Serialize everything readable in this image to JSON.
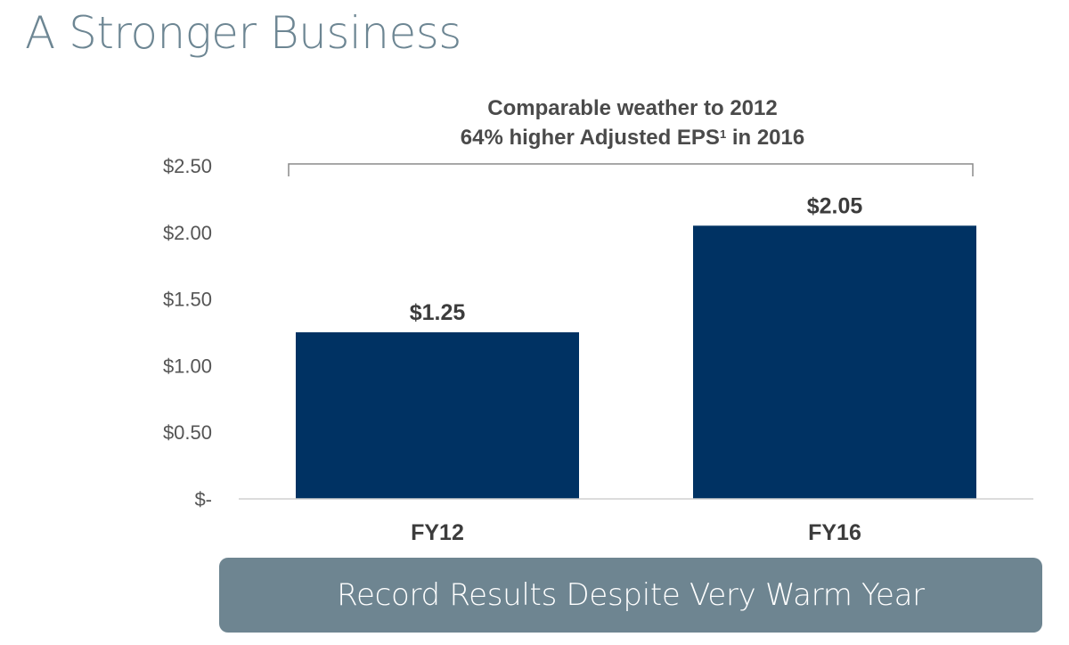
{
  "title": "A Stronger Business",
  "callout": {
    "line1": "Comparable weather to 2012",
    "line2_main": "64% higher Adjusted EPS",
    "line2_sup": "1",
    "line2_tail": " in 2016"
  },
  "banner": "Record Results Despite Very Warm Year",
  "colors": {
    "bar": "#003263",
    "title": "#6d8693",
    "banner": "#6e8591"
  },
  "chart_data": {
    "type": "bar",
    "categories": [
      "FY12",
      "FY16"
    ],
    "values": [
      1.25,
      2.05
    ],
    "data_labels": [
      "$1.25",
      "$2.05"
    ],
    "ylim": [
      0,
      2.5
    ],
    "yticks": [
      0,
      0.5,
      1.0,
      1.5,
      2.0,
      2.5
    ],
    "ytick_labels": [
      "$-",
      "$0.50",
      "$1.00",
      "$1.50",
      "$2.00",
      "$2.50"
    ],
    "grid": false,
    "xlabel": "",
    "ylabel": ""
  }
}
